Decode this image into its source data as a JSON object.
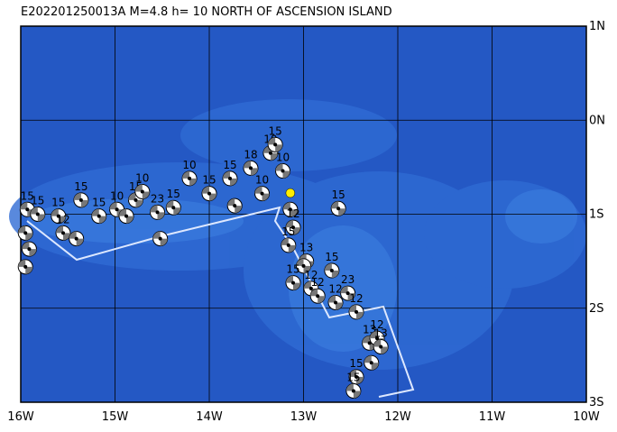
{
  "chart_data": {
    "type": "map",
    "title": "E202201250013A M=4.8 h= 10 NORTH OF ASCENSION ISLAND",
    "xlim": [
      -16,
      -10
    ],
    "ylim": [
      -3,
      1
    ],
    "xticks": [
      {
        "value": -16,
        "label": "16W"
      },
      {
        "value": -15,
        "label": "15W"
      },
      {
        "value": -14,
        "label": "14W"
      },
      {
        "value": -13,
        "label": "13W"
      },
      {
        "value": -12,
        "label": "12W"
      },
      {
        "value": -11,
        "label": "11W"
      },
      {
        "value": -10,
        "label": "10W"
      }
    ],
    "yticks": [
      {
        "value": 1,
        "label": "1N"
      },
      {
        "value": 0,
        "label": "0N"
      },
      {
        "value": -1,
        "label": "1S"
      },
      {
        "value": -2,
        "label": "2S"
      },
      {
        "value": -3,
        "label": "3S"
      }
    ],
    "grid": true,
    "epicenter": {
      "lon": -13.14,
      "lat": -0.775,
      "color": "#ffee00"
    },
    "events": {
      "lon": [
        -15.93,
        -15.82,
        -15.95,
        -15.91,
        -15.95,
        -15.6,
        -15.36,
        -15.55,
        -15.41,
        -15.17,
        -14.98,
        -14.88,
        -14.78,
        -14.71,
        -14.55,
        -14.52,
        -14.38,
        -14.21,
        -14.0,
        -13.78,
        -13.73,
        -13.56,
        -13.35,
        -13.3,
        -13.44,
        -13.22,
        -13.14,
        -13.11,
        -13.16,
        -12.97,
        -13.0,
        -13.11,
        -12.92,
        -12.85,
        -12.7,
        -12.63,
        -12.66,
        -12.53,
        -12.44,
        -12.3,
        -12.22,
        -12.18,
        -12.28,
        -12.44,
        -12.47
      ],
      "lat": [
        -0.95,
        -1.0,
        -1.2,
        -1.37,
        -1.56,
        -1.02,
        -0.85,
        -1.2,
        -1.26,
        -1.02,
        -0.95,
        -1.02,
        -0.85,
        -0.76,
        -0.98,
        -1.26,
        -0.93,
        -0.62,
        -0.78,
        -0.62,
        -0.91,
        -0.51,
        -0.35,
        -0.26,
        -0.78,
        -0.54,
        -0.95,
        -1.14,
        -1.33,
        -1.5,
        -1.55,
        -1.73,
        -1.79,
        -1.87,
        -1.6,
        -0.94,
        -1.94,
        -1.84,
        -2.04,
        -2.37,
        -2.32,
        -2.41,
        -2.58,
        -2.73,
        -2.88
      ],
      "depth": [
        15,
        15,
        null,
        null,
        null,
        15,
        15,
        12,
        null,
        15,
        10,
        null,
        15,
        10,
        23,
        null,
        15,
        10,
        15,
        15,
        null,
        18,
        10,
        15,
        10,
        10,
        null,
        12,
        15,
        13,
        null,
        15,
        12,
        12,
        15,
        15,
        12,
        23,
        12,
        13,
        12,
        13,
        null,
        15,
        15
      ]
    }
  }
}
